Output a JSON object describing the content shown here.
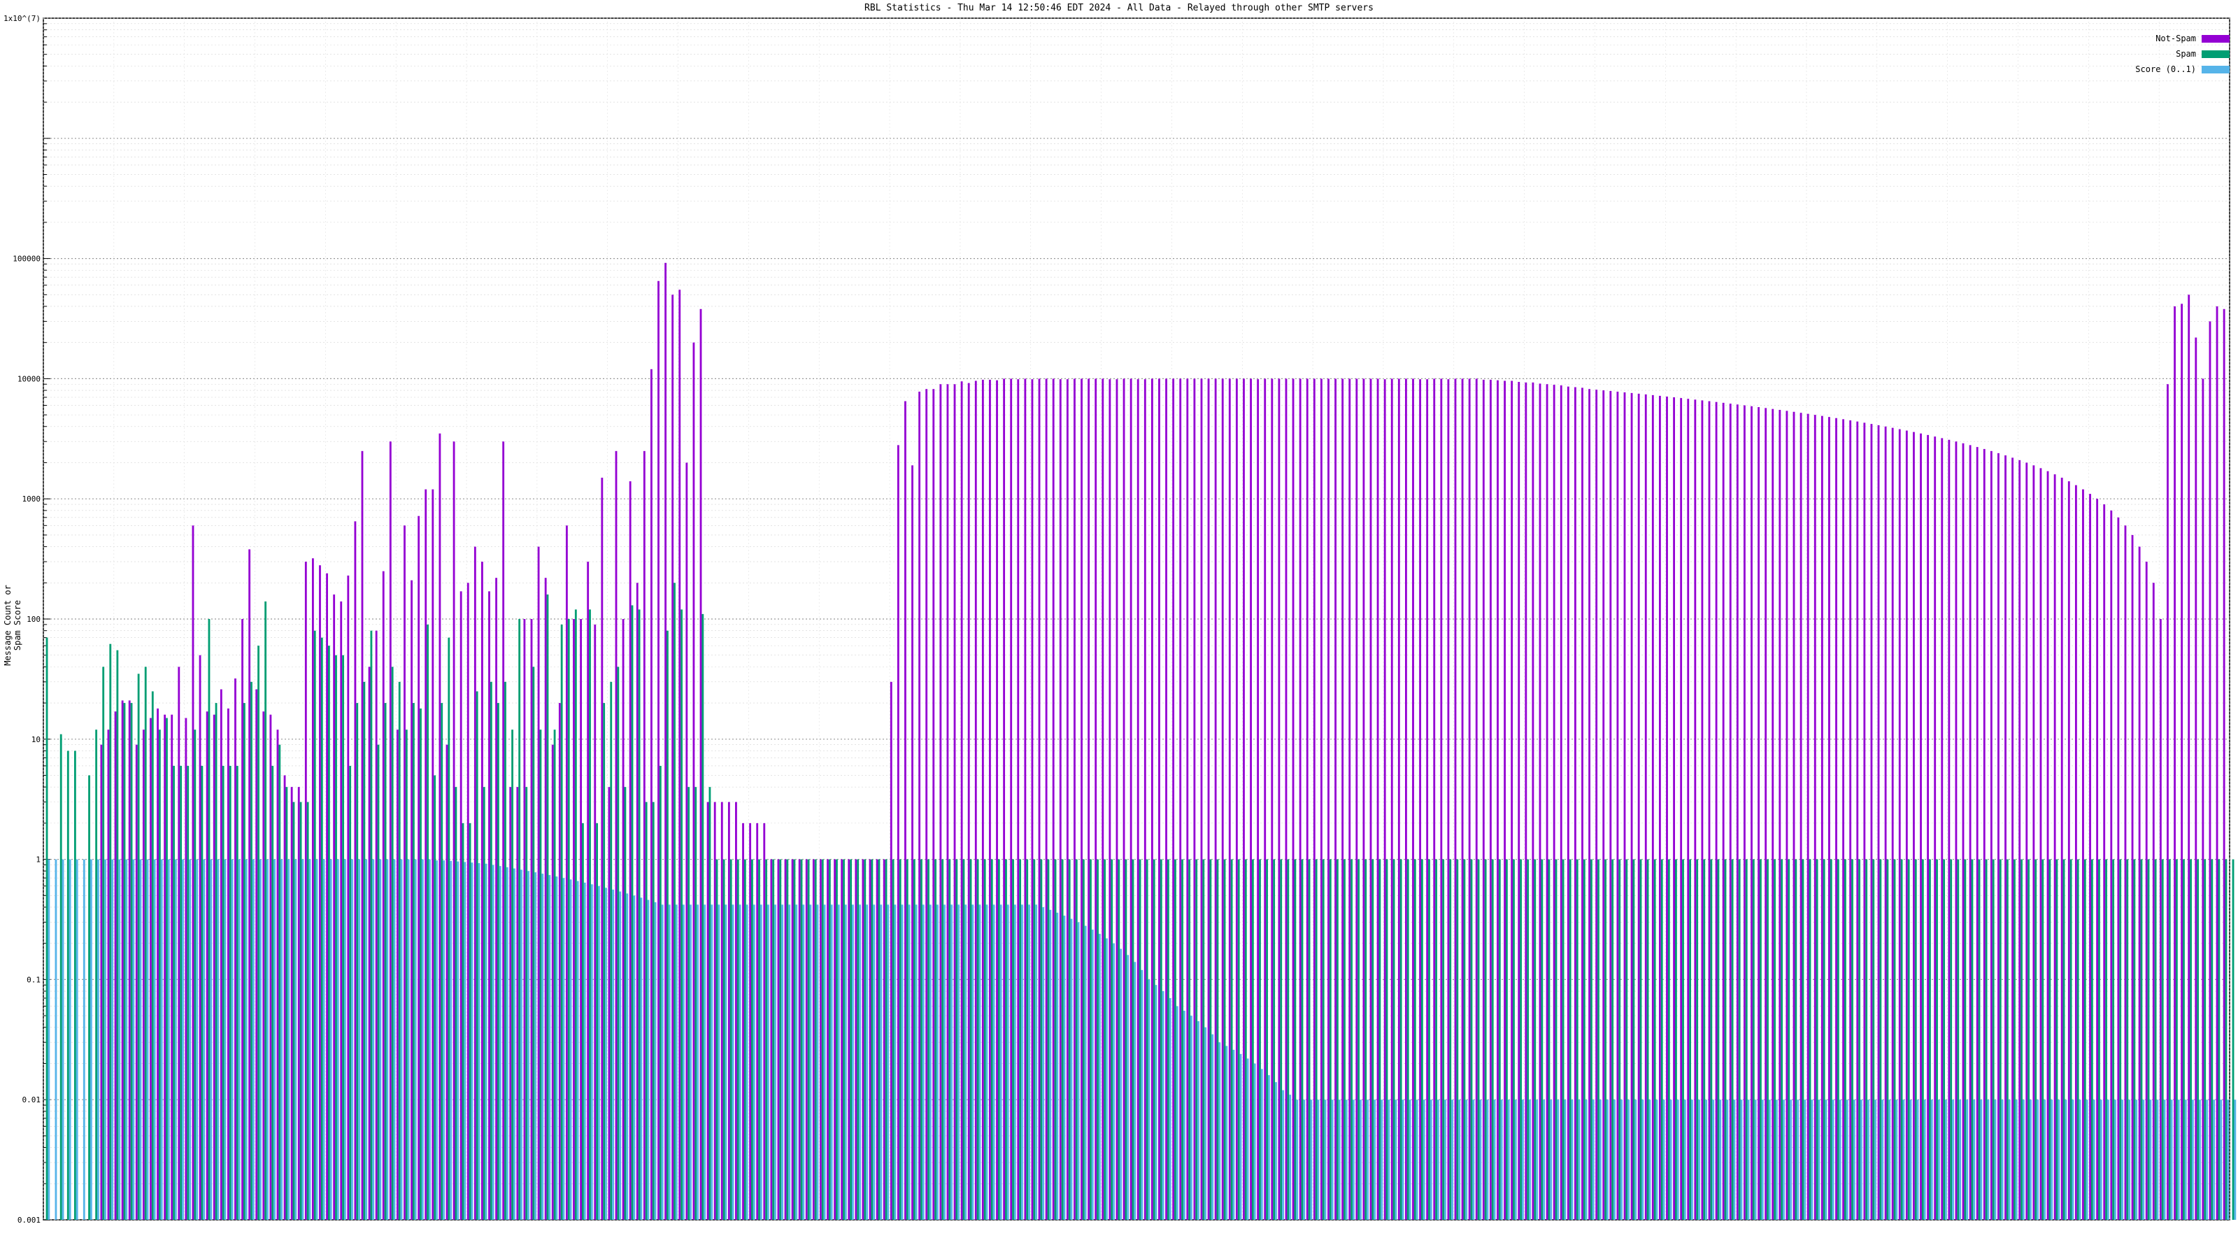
{
  "colors": {
    "not_spam": "#9400d3",
    "spam": "#009e73",
    "score": "#56b4e9",
    "grid": "#b0b0b0",
    "background": "#ffffff"
  },
  "chart_data": {
    "type": "bar",
    "title": "RBL Statistics - Thu Mar 14 12:50:46 EDT 2024 - All Data - Relayed through other SMTP servers",
    "xlabel": "",
    "ylabel": "Message Count or Spam Score",
    "scale": "log",
    "ylim": [
      0.001,
      10000000
    ],
    "yticks": [
      {
        "value": 0.001,
        "label": "0.001"
      },
      {
        "value": 0.01,
        "label": "0.01"
      },
      {
        "value": 0.1,
        "label": "0.1"
      },
      {
        "value": 1,
        "label": "1"
      },
      {
        "value": 10,
        "label": "10"
      },
      {
        "value": 100,
        "label": "100"
      },
      {
        "value": 1000,
        "label": "1000"
      },
      {
        "value": 10000,
        "label": "10000"
      },
      {
        "value": 100000,
        "label": "100000"
      },
      {
        "value": 10000000,
        "label": "1x10^(7)"
      }
    ],
    "grid": true,
    "legend_position": "top-right",
    "series": [
      {
        "name": "Not-Spam",
        "color": "#9400d3",
        "values": [
          0.001,
          0.001,
          0.001,
          0.001,
          0.001,
          0.001,
          0.001,
          0.001,
          9,
          12,
          17,
          21,
          21,
          9,
          12,
          15,
          18,
          16,
          16,
          40,
          15,
          600,
          50,
          17,
          16,
          26,
          18,
          32,
          100,
          380,
          26,
          17,
          16,
          12,
          5,
          4,
          4,
          300,
          320,
          280,
          240,
          160,
          140,
          230,
          650,
          2500,
          40,
          80,
          250,
          3000,
          12,
          600,
          210,
          720,
          1200,
          1200,
          3500,
          9,
          3000,
          170,
          200,
          400,
          300,
          170,
          220,
          3000,
          4,
          4,
          100,
          100,
          400,
          220,
          9,
          20,
          600,
          100,
          100,
          300,
          90,
          1500,
          4,
          2500,
          100,
          1400,
          200,
          2500,
          12000,
          65000,
          92000,
          50000,
          55000,
          2000,
          20000,
          38000,
          3,
          3,
          3,
          3,
          3,
          2,
          2,
          2,
          2,
          1,
          1,
          1,
          1,
          1,
          1,
          1,
          1,
          1,
          1,
          1,
          1,
          1,
          1,
          1,
          1,
          1,
          30,
          2800,
          6500,
          1900,
          7800,
          8200,
          8200,
          9000,
          9000,
          9000,
          9500,
          9200,
          9600,
          9800,
          9800,
          9700,
          10000,
          10000,
          9900,
          10000,
          9900,
          10000,
          10000,
          10000,
          9900,
          9900,
          10000,
          10000,
          10000,
          10000,
          10000,
          9900,
          9900,
          10000,
          10000,
          9900,
          9900,
          10000,
          10000,
          10000,
          10000,
          10000,
          10000,
          10000,
          10000,
          10000,
          10000,
          10000,
          10000,
          10000,
          10000,
          10000,
          9900,
          10000,
          10000,
          10000,
          10000,
          10000,
          10000,
          10000,
          10000,
          10000,
          10000,
          10000,
          10000,
          10000,
          10000,
          10000,
          10000,
          10000,
          9900,
          10000,
          10000,
          10000,
          10000,
          9900,
          9900,
          10000,
          10000,
          9900,
          10000,
          10000,
          10000,
          10000,
          9800,
          9800,
          9700,
          9600,
          9600,
          9400,
          9300,
          9300,
          9100,
          9000,
          8900,
          8800,
          8600,
          8500,
          8400,
          8200,
          8100,
          8000,
          7900,
          7800,
          7700,
          7600,
          7500,
          7400,
          7300,
          7200,
          7100,
          7000,
          6900,
          6800,
          6700,
          6600,
          6500,
          6400,
          6300,
          6200,
          6100,
          6000,
          5900,
          5800,
          5700,
          5600,
          5500,
          5400,
          5300,
          5200,
          5100,
          5000,
          4900,
          4800,
          4700,
          4600,
          4500,
          4400,
          4300,
          4200,
          4100,
          4000,
          3900,
          3800,
          3700,
          3600,
          3500,
          3400,
          3300,
          3200,
          3100,
          3000,
          2900,
          2800,
          2700,
          2600,
          2500,
          2400,
          2300,
          2200,
          2100,
          2000,
          1900,
          1800,
          1700,
          1600,
          1500,
          1400,
          1300,
          1200,
          1100,
          1000,
          900,
          800,
          700,
          600,
          500,
          400,
          300,
          200,
          100,
          9000,
          40000,
          42000,
          50000,
          22000,
          10000,
          30000,
          40000,
          38000
        ]
      },
      {
        "name": "Spam",
        "color": "#009e73",
        "values": [
          70,
          0.001,
          11,
          8,
          8,
          0.001,
          5,
          12,
          40,
          62,
          55,
          20,
          20,
          35,
          40,
          25,
          12,
          15,
          6,
          6,
          6,
          12,
          6,
          100,
          20,
          6,
          6,
          6,
          20,
          30,
          60,
          140,
          6,
          9,
          4,
          3,
          3,
          3,
          80,
          70,
          60,
          50,
          50,
          6,
          20,
          30,
          80,
          9,
          20,
          40,
          30,
          12,
          20,
          18,
          90,
          5,
          20,
          70,
          4,
          2,
          2,
          25,
          4,
          30,
          20,
          30,
          12,
          100,
          4,
          40,
          12,
          160,
          12,
          90,
          100,
          120,
          2,
          120,
          2,
          20,
          30,
          40,
          4,
          130,
          120,
          3,
          3,
          6,
          80,
          200,
          120,
          4,
          4,
          110,
          4,
          1,
          1,
          1,
          1,
          1,
          1,
          1,
          1,
          1,
          1,
          1,
          1,
          1,
          1,
          1,
          1,
          1,
          1,
          1,
          1,
          1,
          1,
          1,
          1,
          1,
          1,
          1,
          1,
          1,
          1,
          1,
          1,
          1,
          1,
          1,
          1,
          1,
          1,
          1,
          1,
          1,
          1,
          1,
          1,
          1,
          1,
          1,
          1,
          1,
          1,
          1,
          1,
          1,
          1,
          1,
          1,
          1,
          1,
          1,
          1,
          1,
          1,
          1,
          1,
          1,
          1,
          1,
          1,
          1,
          1,
          1,
          1,
          1,
          1,
          1,
          1,
          1,
          1,
          1,
          1,
          1,
          1,
          1,
          1,
          1,
          1,
          1,
          1,
          1,
          1,
          1,
          1,
          1,
          1,
          1,
          1,
          1,
          1,
          1,
          1,
          1,
          1,
          1,
          1,
          1,
          1,
          1,
          1,
          1,
          1,
          1,
          1,
          1,
          1,
          1,
          1,
          1,
          1,
          1,
          1,
          1,
          1,
          1,
          1,
          1,
          1,
          1,
          1,
          1,
          1,
          1,
          1,
          1,
          1,
          1,
          1,
          1,
          1,
          1,
          1,
          1,
          1,
          1,
          1,
          1,
          1,
          1,
          1,
          1,
          1,
          1,
          1,
          1,
          1,
          1,
          1,
          1,
          1,
          1,
          1,
          1,
          1,
          1,
          1,
          1,
          1,
          1,
          1,
          1,
          1,
          1,
          1,
          1,
          1,
          1,
          1,
          1,
          1,
          1,
          1,
          1,
          1,
          1,
          1,
          1,
          1,
          1,
          1,
          1,
          1,
          1,
          1,
          1,
          1,
          1,
          1,
          1,
          1,
          1,
          1,
          1,
          1,
          1,
          1,
          1,
          1,
          1,
          1,
          1,
          1,
          1,
          1,
          1,
          1,
          1,
          1,
          1,
          1,
          1,
          1,
          1,
          1,
          1,
          1,
          1,
          1,
          1,
          1,
          1,
          1,
          1,
          1,
          1,
          1,
          1,
          1,
          1,
          1,
          1,
          1,
          1,
          1,
          1,
          1,
          1,
          1,
          1,
          1,
          1,
          1,
          1,
          1,
          1,
          1,
          1,
          1,
          1,
          1,
          1,
          1,
          1,
          1,
          1,
          1,
          1,
          1,
          1,
          1,
          1,
          1,
          1,
          1,
          1,
          1,
          1,
          1,
          3,
          1
        ]
      },
      {
        "name": "Score (0..1)",
        "color": "#56b4e9",
        "values": [
          1,
          1,
          1,
          1,
          1,
          1,
          1,
          1,
          1,
          1,
          1,
          1,
          1,
          1,
          1,
          1,
          1,
          1,
          1,
          1,
          1,
          1,
          1,
          1,
          1,
          1,
          1,
          1,
          1,
          1,
          1,
          1,
          1,
          1,
          1,
          1,
          1,
          1,
          1,
          1,
          1,
          1,
          1,
          1,
          1,
          1,
          1,
          1,
          1,
          1,
          1,
          1,
          1,
          1,
          1,
          0.98,
          0.98,
          0.97,
          0.96,
          0.95,
          0.94,
          0.93,
          0.92,
          0.9,
          0.88,
          0.86,
          0.84,
          0.82,
          0.8,
          0.78,
          0.76,
          0.74,
          0.72,
          0.7,
          0.68,
          0.66,
          0.64,
          0.62,
          0.6,
          0.58,
          0.56,
          0.54,
          0.52,
          0.5,
          0.48,
          0.46,
          0.44,
          0.42,
          0.42,
          0.42,
          0.42,
          0.42,
          0.42,
          0.42,
          0.42,
          0.42,
          0.42,
          0.42,
          0.42,
          0.42,
          0.42,
          0.42,
          0.42,
          0.42,
          0.42,
          0.42,
          0.42,
          0.42,
          0.42,
          0.42,
          0.42,
          0.42,
          0.42,
          0.42,
          0.42,
          0.42,
          0.42,
          0.42,
          0.42,
          0.42,
          0.42,
          0.42,
          0.42,
          0.42,
          0.42,
          0.42,
          0.42,
          0.42,
          0.42,
          0.42,
          0.42,
          0.42,
          0.42,
          0.42,
          0.42,
          0.42,
          0.42,
          0.42,
          0.42,
          0.42,
          0.42,
          0.4,
          0.38,
          0.36,
          0.34,
          0.32,
          0.3,
          0.28,
          0.26,
          0.24,
          0.22,
          0.2,
          0.18,
          0.16,
          0.14,
          0.12,
          0.1,
          0.09,
          0.08,
          0.07,
          0.06,
          0.055,
          0.05,
          0.045,
          0.04,
          0.035,
          0.03,
          0.028,
          0.026,
          0.024,
          0.022,
          0.02,
          0.018,
          0.016,
          0.014,
          0.012,
          0.011,
          0.01,
          0.01,
          0.01,
          0.01,
          0.01,
          0.01,
          0.01,
          0.01,
          0.01,
          0.01,
          0.01,
          0.01,
          0.01,
          0.01,
          0.01,
          0.01,
          0.01,
          0.01,
          0.01,
          0.01,
          0.01,
          0.01,
          0.01,
          0.01,
          0.01,
          0.01,
          0.01,
          0.01,
          0.01,
          0.01,
          0.01,
          0.01,
          0.01,
          0.01,
          0.01,
          0.01,
          0.01,
          0.01,
          0.01,
          0.01,
          0.01,
          0.01,
          0.01,
          0.01,
          0.01,
          0.01,
          0.01,
          0.01,
          0.01,
          0.01,
          0.01,
          0.01,
          0.01,
          0.01,
          0.01,
          0.01,
          0.01,
          0.01,
          0.01,
          0.01,
          0.01,
          0.01,
          0.01,
          0.01,
          0.01,
          0.01,
          0.01,
          0.01,
          0.01,
          0.01,
          0.01,
          0.01,
          0.01,
          0.01,
          0.01,
          0.01,
          0.01,
          0.01,
          0.01,
          0.01,
          0.01,
          0.01,
          0.01,
          0.01,
          0.01,
          0.01,
          0.01,
          0.01,
          0.01,
          0.01,
          0.01,
          0.01,
          0.01,
          0.01,
          0.01,
          0.01,
          0.01,
          0.01,
          0.01,
          0.01,
          0.01,
          0.01,
          0.01,
          0.01,
          0.01,
          0.01,
          0.01,
          0.01,
          0.01,
          0.01,
          0.01,
          0.01,
          0.01,
          0.01,
          0.01,
          0.01,
          0.01,
          0.01,
          0.01,
          0.01,
          0.01,
          0.01,
          0.01,
          0.01,
          0.01,
          0.01,
          0.01,
          0.01,
          0.01,
          0.01,
          0.01,
          0.01,
          0.01,
          0.01,
          0.01,
          0.01,
          0.01,
          0.01,
          0.01,
          0.01,
          0.01,
          0.01,
          0.01,
          0.01,
          0.01,
          0.01,
          0.01,
          0.01,
          0.01,
          0.01,
          0.01,
          0.01,
          0.01,
          0.005,
          0.003,
          0.002,
          0.002,
          0.001
        ]
      }
    ]
  }
}
